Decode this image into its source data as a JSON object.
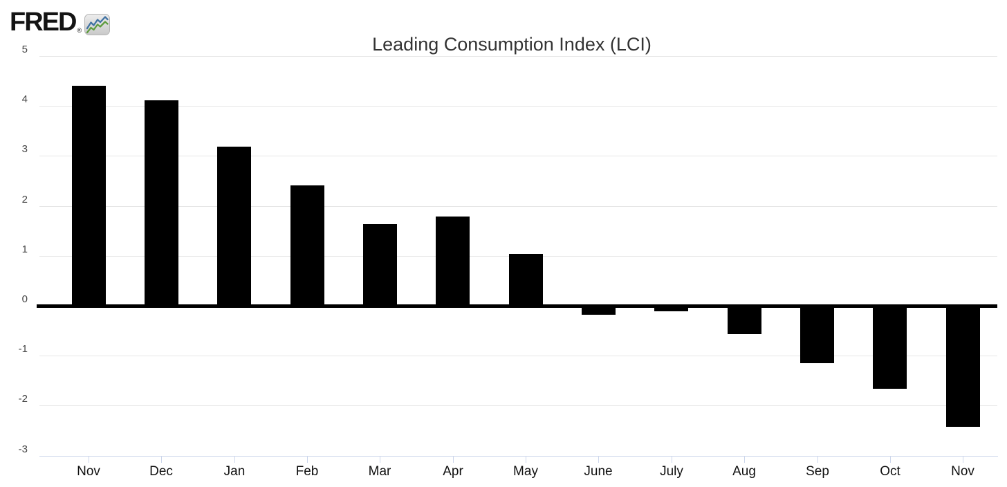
{
  "logo": {
    "text": "FRED",
    "registered": "®",
    "icon": "fred-sparkline-badge-icon",
    "icon_colors": {
      "background_top": "#ececec",
      "background_bottom": "#c9c9c9",
      "border": "#b5b5b5",
      "blue_line": "#4173a3",
      "green_line": "#5e9c3e"
    }
  },
  "chart_data": {
    "type": "bar",
    "title": "Leading Consumption Index (LCI)",
    "xlabel": "",
    "ylabel": "",
    "categories": [
      "Nov",
      "Dec",
      "Jan",
      "Feb",
      "Mar",
      "Apr",
      "May",
      "June",
      "July",
      "Aug",
      "Sep",
      "Oct",
      "Nov"
    ],
    "values": [
      4.41,
      4.12,
      3.19,
      2.41,
      1.64,
      1.79,
      1.04,
      -0.18,
      -0.11,
      -0.57,
      -1.15,
      -1.66,
      -2.42
    ],
    "series": [
      {
        "name": "Leading Consumption Index (LCI)",
        "values": [
          4.41,
          4.12,
          3.19,
          2.41,
          1.64,
          1.79,
          1.04,
          -0.18,
          -0.11,
          -0.57,
          -1.15,
          -1.66,
          -2.42
        ]
      }
    ],
    "ylim": [
      -3,
      5
    ],
    "yticks": [
      5,
      4,
      3,
      2,
      1,
      0,
      -1,
      -2,
      -3
    ],
    "grid": "horizontal",
    "legend": "none",
    "colors": {
      "bar": "#000000",
      "zero_line": "#000000",
      "grid_line": "#e6e6e6",
      "axis_line": "#ccd6eb",
      "tick_mark": "#ccd6eb",
      "title_text": "#333333",
      "y_label_text": "#444444",
      "x_label_text": "#111111"
    }
  }
}
